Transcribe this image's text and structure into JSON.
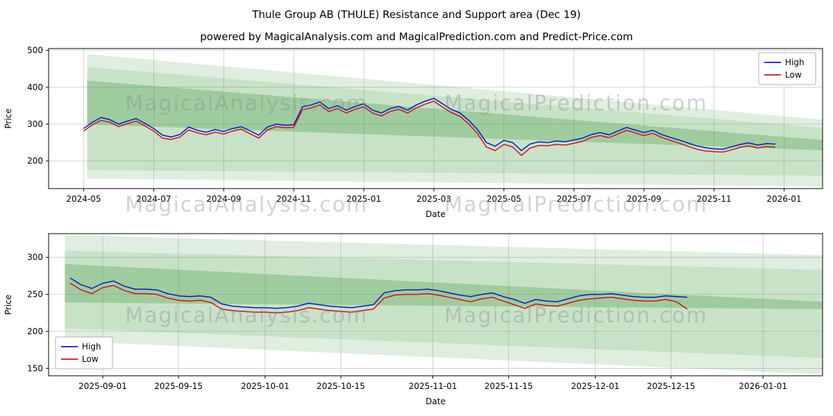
{
  "page": {
    "title": "Thule Group AB (THULE) Resistance and Support area (Dec 19)",
    "subtitle": "powered by MagicalAnalysis.com and MagicalPrediction.com and Predict-Price.com"
  },
  "watermarks": {
    "left": "MagicalAnalysis.com",
    "right": "MagicalPrediction.com"
  },
  "colors": {
    "high": "#1111cc",
    "low": "#d11111",
    "band": "#4c9e4c",
    "grid": "#c8c8c8",
    "spine": "#000000",
    "text": "#000000"
  },
  "chart_data": [
    {
      "type": "line",
      "title": "",
      "xlabel": "Date",
      "ylabel": "Price",
      "xlim": [
        3.0,
        25.1
      ],
      "ylim": [
        125,
        505
      ],
      "yticks": [
        200,
        300,
        400,
        500
      ],
      "xticks": [
        {
          "v": 4,
          "label": "2024-05"
        },
        {
          "v": 6,
          "label": "2024-07"
        },
        {
          "v": 8,
          "label": "2024-09"
        },
        {
          "v": 10,
          "label": "2024-11"
        },
        {
          "v": 12,
          "label": "2025-01"
        },
        {
          "v": 14,
          "label": "2025-03"
        },
        {
          "v": 16,
          "label": "2025-05"
        },
        {
          "v": 18,
          "label": "2025-07"
        },
        {
          "v": 20,
          "label": "2025-09"
        },
        {
          "v": 22,
          "label": "2025-11"
        },
        {
          "v": 24,
          "label": "2026-01"
        }
      ],
      "legend": {
        "position": "upper-right",
        "entries": [
          {
            "label": "High",
            "color": "#1111cc"
          },
          {
            "label": "Low",
            "color": "#d11111"
          }
        ]
      },
      "bands": [
        {
          "opacity": 0.18,
          "points": [
            [
              4.1,
              490
            ],
            [
              25.1,
              312
            ],
            [
              25.1,
              130
            ],
            [
              4.1,
              152
            ]
          ]
        },
        {
          "opacity": 0.15,
          "points": [
            [
              4.1,
              455
            ],
            [
              25.1,
              290
            ],
            [
              25.1,
              160
            ],
            [
              4.1,
              175
            ]
          ]
        },
        {
          "opacity": 0.32,
          "points": [
            [
              4.1,
              418
            ],
            [
              25.1,
              257
            ],
            [
              25.1,
              229
            ],
            [
              4.1,
              299
            ]
          ]
        }
      ],
      "series": [
        {
          "name": "High",
          "color": "#1111cc",
          "x": [
            4.0,
            4.25,
            4.5,
            4.75,
            5.0,
            5.25,
            5.5,
            5.75,
            6.0,
            6.25,
            6.5,
            6.75,
            7.0,
            7.25,
            7.5,
            7.75,
            8.0,
            8.25,
            8.5,
            8.75,
            9.0,
            9.25,
            9.5,
            9.75,
            10.0,
            10.25,
            10.5,
            10.75,
            11.0,
            11.25,
            11.5,
            11.75,
            12.0,
            12.25,
            12.5,
            12.75,
            13.0,
            13.25,
            13.5,
            13.75,
            14.0,
            14.25,
            14.5,
            14.75,
            15.0,
            15.25,
            15.5,
            15.75,
            16.0,
            16.25,
            16.5,
            16.75,
            17.0,
            17.25,
            17.5,
            17.75,
            18.0,
            18.25,
            18.5,
            18.75,
            19.0,
            19.25,
            19.5,
            19.75,
            20.0,
            20.25,
            20.5,
            20.75,
            21.0,
            21.25,
            21.5,
            21.75,
            22.0,
            22.25,
            22.5,
            22.75,
            23.0,
            23.25,
            23.5,
            23.75
          ],
          "y": [
            288,
            305,
            318,
            312,
            300,
            308,
            315,
            302,
            288,
            270,
            265,
            272,
            292,
            283,
            278,
            285,
            280,
            288,
            293,
            282,
            270,
            292,
            300,
            297,
            298,
            347,
            352,
            360,
            342,
            350,
            338,
            348,
            355,
            338,
            330,
            342,
            348,
            338,
            352,
            362,
            370,
            355,
            340,
            330,
            310,
            285,
            250,
            240,
            256,
            250,
            228,
            246,
            252,
            250,
            254,
            252,
            257,
            262,
            272,
            277,
            271,
            281,
            291,
            284,
            277,
            283,
            272,
            264,
            257,
            249,
            241,
            236,
            233,
            232,
            238,
            245,
            249,
            243,
            247,
            246
          ]
        },
        {
          "name": "Low",
          "color": "#d11111",
          "x": [
            4.0,
            4.25,
            4.5,
            4.75,
            5.0,
            5.25,
            5.5,
            5.75,
            6.0,
            6.25,
            6.5,
            6.75,
            7.0,
            7.25,
            7.5,
            7.75,
            8.0,
            8.25,
            8.5,
            8.75,
            9.0,
            9.25,
            9.5,
            9.75,
            10.0,
            10.25,
            10.5,
            10.75,
            11.0,
            11.25,
            11.5,
            11.75,
            12.0,
            12.25,
            12.5,
            12.75,
            13.0,
            13.25,
            13.5,
            13.75,
            14.0,
            14.25,
            14.5,
            14.75,
            15.0,
            15.25,
            15.5,
            15.75,
            16.0,
            16.25,
            16.5,
            16.75,
            17.0,
            17.25,
            17.5,
            17.75,
            18.0,
            18.25,
            18.5,
            18.75,
            19.0,
            19.25,
            19.5,
            19.75,
            20.0,
            20.25,
            20.5,
            20.75,
            21.0,
            21.25,
            21.5,
            21.75,
            22.0,
            22.25,
            22.5,
            22.75,
            23.0,
            23.25,
            23.5,
            23.75
          ],
          "y": [
            281,
            298,
            310,
            305,
            293,
            301,
            308,
            295,
            281,
            262,
            258,
            265,
            284,
            276,
            271,
            278,
            273,
            281,
            286,
            274,
            262,
            284,
            293,
            290,
            291,
            339,
            344,
            352,
            334,
            342,
            330,
            340,
            347,
            330,
            322,
            334,
            340,
            330,
            344,
            354,
            362,
            346,
            331,
            321,
            300,
            274,
            238,
            228,
            245,
            238,
            215,
            235,
            242,
            241,
            245,
            243,
            248,
            253,
            264,
            269,
            263,
            273,
            283,
            276,
            269,
            275,
            264,
            256,
            248,
            240,
            232,
            227,
            225,
            224,
            230,
            237,
            241,
            235,
            239,
            237
          ]
        }
      ]
    },
    {
      "type": "line",
      "title": "",
      "xlabel": "Date",
      "ylabel": "Price",
      "xlim": [
        -3,
        140
      ],
      "ylim": [
        140,
        332
      ],
      "yticks": [
        150,
        200,
        250,
        300
      ],
      "xticks": [
        {
          "v": 7,
          "label": "2025-09-01"
        },
        {
          "v": 21,
          "label": "2025-09-15"
        },
        {
          "v": 37,
          "label": "2025-10-01"
        },
        {
          "v": 51,
          "label": "2025-10-15"
        },
        {
          "v": 68,
          "label": "2025-11-01"
        },
        {
          "v": 82,
          "label": "2025-11-15"
        },
        {
          "v": 98,
          "label": "2025-12-01"
        },
        {
          "v": 112,
          "label": "2025-12-15"
        },
        {
          "v": 129,
          "label": "2026-01-01"
        }
      ],
      "legend": {
        "position": "lower-left",
        "entries": [
          {
            "label": "High",
            "color": "#1111cc"
          },
          {
            "label": "Low",
            "color": "#d11111"
          }
        ]
      },
      "bands": [
        {
          "opacity": 0.18,
          "points": [
            [
              0,
              330
            ],
            [
              140,
              303
            ],
            [
              140,
              142
            ],
            [
              0,
              187
            ]
          ]
        },
        {
          "opacity": 0.15,
          "points": [
            [
              0,
              309
            ],
            [
              140,
              283
            ],
            [
              140,
              164
            ],
            [
              0,
              204
            ]
          ]
        },
        {
          "opacity": 0.32,
          "points": [
            [
              0,
              291
            ],
            [
              140,
              240
            ],
            [
              140,
              230
            ],
            [
              0,
              239
            ]
          ]
        }
      ],
      "series": [
        {
          "name": "High",
          "color": "#1111cc",
          "x": [
            1,
            3,
            5,
            7,
            9,
            11,
            13,
            15,
            17,
            19,
            21,
            23,
            25,
            27,
            29,
            31,
            33,
            35,
            37,
            39,
            41,
            43,
            45,
            47,
            49,
            51,
            53,
            55,
            57,
            59,
            61,
            63,
            65,
            67,
            69,
            71,
            73,
            75,
            77,
            79,
            81,
            83,
            85,
            87,
            89,
            91,
            93,
            95,
            97,
            99,
            101,
            103,
            105,
            107,
            109,
            111,
            113,
            115
          ],
          "y": [
            272,
            263,
            258,
            265,
            268,
            261,
            257,
            257,
            256,
            251,
            248,
            247,
            248,
            246,
            237,
            234,
            233,
            232,
            232,
            231,
            232,
            234,
            238,
            236,
            234,
            233,
            232,
            234,
            236,
            252,
            255,
            256,
            256,
            257,
            255,
            252,
            249,
            247,
            250,
            252,
            247,
            243,
            238,
            243,
            241,
            240,
            244,
            248,
            250,
            250,
            251,
            249,
            247,
            246,
            246,
            248,
            247,
            246
          ]
        },
        {
          "name": "Low",
          "color": "#d11111",
          "x": [
            1,
            3,
            5,
            7,
            9,
            11,
            13,
            15,
            17,
            19,
            21,
            23,
            25,
            27,
            29,
            31,
            33,
            35,
            37,
            39,
            41,
            43,
            45,
            47,
            49,
            51,
            53,
            55,
            57,
            59,
            61,
            63,
            65,
            67,
            69,
            71,
            73,
            75,
            77,
            79,
            81,
            83,
            85,
            87,
            89,
            91,
            93,
            95,
            97,
            99,
            101,
            103,
            105,
            107,
            109,
            111,
            113,
            115
          ],
          "y": [
            265,
            256,
            251,
            259,
            262,
            255,
            251,
            251,
            250,
            245,
            242,
            241,
            242,
            239,
            230,
            228,
            227,
            226,
            226,
            225,
            226,
            228,
            232,
            230,
            228,
            227,
            226,
            228,
            230,
            245,
            249,
            250,
            250,
            251,
            249,
            246,
            243,
            240,
            244,
            246,
            241,
            236,
            231,
            237,
            235,
            234,
            238,
            242,
            244,
            245,
            246,
            244,
            242,
            241,
            241,
            243,
            240,
            230
          ]
        }
      ]
    }
  ]
}
